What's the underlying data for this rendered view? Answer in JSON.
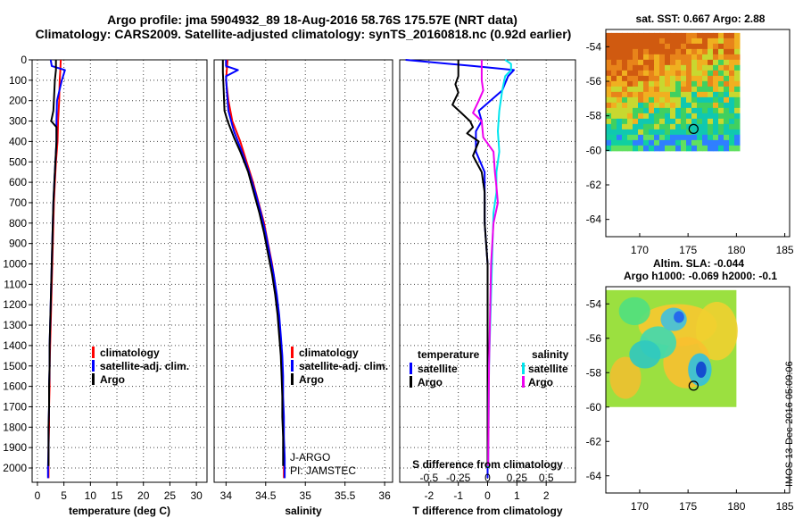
{
  "title": {
    "line1": "Argo profile: jma 5904932_89 18-Aug-2016 58.76S 175.57E (NRT data)",
    "line2": "Climatology: CARS2009. Satellite-adjusted climatology: synTS_20160818.nc (0.92d earlier)"
  },
  "watermark": "IMOS 13-Dec-2016 05:09:06",
  "colors": {
    "climatology": "#ff0000",
    "satellite": "#0000ff",
    "argo": "#000000",
    "sal_satellite": "#00e5ee",
    "sal_argo": "#ee00ee"
  },
  "chart_data": [
    {
      "type": "line",
      "id": "temperature",
      "xlabel": "temperature (deg C)",
      "xlim": [
        -1,
        32
      ],
      "xticks": [
        0,
        5,
        10,
        15,
        20,
        25,
        30
      ],
      "ylim": [
        2070,
        0
      ],
      "yticks": [
        0,
        100,
        200,
        300,
        400,
        500,
        600,
        700,
        800,
        900,
        1000,
        1100,
        1200,
        1300,
        1400,
        1500,
        1600,
        1700,
        1800,
        1900,
        2000
      ],
      "legend": [
        "climatology",
        "satellite-adj. clim.",
        "Argo"
      ],
      "series": [
        {
          "name": "climatology",
          "color": "#ff0000",
          "points": [
            [
              4.4,
              0
            ],
            [
              4.3,
              60
            ],
            [
              4.2,
              100
            ],
            [
              4.1,
              200
            ],
            [
              3.9,
              300
            ],
            [
              3.8,
              400
            ],
            [
              3.5,
              500
            ],
            [
              3.3,
              600
            ],
            [
              3.1,
              700
            ],
            [
              3.0,
              800
            ],
            [
              2.9,
              900
            ],
            [
              2.8,
              1000
            ],
            [
              2.7,
              1100
            ],
            [
              2.6,
              1200
            ],
            [
              2.5,
              1300
            ],
            [
              2.4,
              1400
            ],
            [
              2.3,
              1500
            ],
            [
              2.3,
              1600
            ],
            [
              2.2,
              1700
            ],
            [
              2.2,
              1800
            ],
            [
              2.1,
              1900
            ],
            [
              2.1,
              2000
            ],
            [
              2.1,
              2050
            ]
          ]
        },
        {
          "name": "satellite-adj. clim.",
          "color": "#0000ff",
          "points": [
            [
              2.5,
              0
            ],
            [
              2.7,
              30
            ],
            [
              5.2,
              50
            ],
            [
              4.6,
              100
            ],
            [
              3.7,
              200
            ],
            [
              3.6,
              300
            ],
            [
              3.6,
              400
            ],
            [
              3.4,
              500
            ],
            [
              3.2,
              600
            ],
            [
              3.0,
              700
            ],
            [
              2.9,
              800
            ],
            [
              2.8,
              900
            ],
            [
              2.7,
              1000
            ],
            [
              2.6,
              1100
            ],
            [
              2.5,
              1200
            ],
            [
              2.4,
              1300
            ],
            [
              2.3,
              1400
            ],
            [
              2.3,
              1500
            ],
            [
              2.2,
              1600
            ],
            [
              2.2,
              1700
            ],
            [
              2.1,
              1800
            ],
            [
              2.1,
              1900
            ],
            [
              2.0,
              2000
            ],
            [
              2.0,
              2050
            ]
          ]
        },
        {
          "name": "Argo",
          "color": "#000000",
          "points": [
            [
              3.5,
              0
            ],
            [
              3.5,
              50
            ],
            [
              3.3,
              100
            ],
            [
              3.1,
              200
            ],
            [
              3.0,
              250
            ],
            [
              2.6,
              300
            ],
            [
              3.6,
              330
            ],
            [
              3.6,
              400
            ],
            [
              3.4,
              500
            ],
            [
              3.2,
              600
            ],
            [
              3.0,
              700
            ],
            [
              2.9,
              800
            ],
            [
              2.8,
              900
            ],
            [
              2.7,
              1000
            ],
            [
              2.6,
              1100
            ],
            [
              2.5,
              1200
            ],
            [
              2.4,
              1300
            ],
            [
              2.3,
              1400
            ],
            [
              2.3,
              1500
            ],
            [
              2.2,
              1600
            ],
            [
              2.2,
              1700
            ],
            [
              2.1,
              1800
            ],
            [
              2.1,
              1900
            ],
            [
              2.1,
              1990
            ]
          ]
        }
      ]
    },
    {
      "type": "line",
      "id": "salinity",
      "xlabel": "salinity",
      "xlim": [
        33.85,
        36.1
      ],
      "xticks": [
        34,
        34.5,
        35,
        35.5,
        36
      ],
      "ylim": [
        2070,
        0
      ],
      "legend": [
        "climatology",
        "satellite-adj. clim.",
        "Argo"
      ],
      "float_info": [
        "J-ARGO",
        "PI: JAMSTEC"
      ],
      "series": [
        {
          "name": "climatology",
          "color": "#ff0000",
          "points": [
            [
              34.02,
              0
            ],
            [
              34.0,
              100
            ],
            [
              34.03,
              200
            ],
            [
              34.08,
              300
            ],
            [
              34.18,
              400
            ],
            [
              34.26,
              500
            ],
            [
              34.34,
              600
            ],
            [
              34.41,
              700
            ],
            [
              34.48,
              800
            ],
            [
              34.53,
              900
            ],
            [
              34.58,
              1000
            ],
            [
              34.62,
              1100
            ],
            [
              34.65,
              1200
            ],
            [
              34.67,
              1300
            ],
            [
              34.69,
              1400
            ],
            [
              34.7,
              1500
            ],
            [
              34.71,
              1600
            ],
            [
              34.72,
              1700
            ],
            [
              34.72,
              1800
            ],
            [
              34.73,
              1900
            ],
            [
              34.73,
              2000
            ],
            [
              34.73,
              2050
            ]
          ]
        },
        {
          "name": "satellite-adj. clim.",
          "color": "#0000ff",
          "points": [
            [
              34.0,
              0
            ],
            [
              34.0,
              30
            ],
            [
              34.15,
              50
            ],
            [
              34.0,
              80
            ],
            [
              34.01,
              150
            ],
            [
              34.03,
              250
            ],
            [
              34.1,
              350
            ],
            [
              34.2,
              450
            ],
            [
              34.29,
              550
            ],
            [
              34.37,
              650
            ],
            [
              34.44,
              750
            ],
            [
              34.5,
              850
            ],
            [
              34.55,
              950
            ],
            [
              34.6,
              1050
            ],
            [
              34.64,
              1150
            ],
            [
              34.67,
              1250
            ],
            [
              34.69,
              1350
            ],
            [
              34.71,
              1450
            ],
            [
              34.72,
              1550
            ],
            [
              34.72,
              1650
            ],
            [
              34.73,
              1750
            ],
            [
              34.73,
              1850
            ],
            [
              34.74,
              1950
            ],
            [
              34.74,
              2050
            ]
          ]
        },
        {
          "name": "Argo",
          "color": "#000000",
          "points": [
            [
              33.96,
              0
            ],
            [
              33.96,
              60
            ],
            [
              33.97,
              150
            ],
            [
              33.98,
              250
            ],
            [
              34.02,
              300
            ],
            [
              34.1,
              380
            ],
            [
              34.18,
              450
            ],
            [
              34.28,
              550
            ],
            [
              34.35,
              650
            ],
            [
              34.42,
              750
            ],
            [
              34.48,
              850
            ],
            [
              34.53,
              950
            ],
            [
              34.58,
              1050
            ],
            [
              34.62,
              1150
            ],
            [
              34.65,
              1250
            ],
            [
              34.67,
              1350
            ],
            [
              34.69,
              1450
            ],
            [
              34.7,
              1550
            ],
            [
              34.71,
              1650
            ],
            [
              34.71,
              1750
            ],
            [
              34.72,
              1850
            ],
            [
              34.72,
              1990
            ]
          ]
        }
      ]
    },
    {
      "type": "line",
      "id": "difference",
      "xlabel": "T difference from climatology",
      "xlabel2": "S difference from climatology",
      "xlim": [
        -3,
        3
      ],
      "xticks": [
        -2,
        -1,
        0,
        1,
        2
      ],
      "xticks2": [
        -0.5,
        -0.25,
        0,
        0.25,
        0.5
      ],
      "xticks2_labels": [
        "-0.5",
        "-0.25",
        "0",
        "0.25",
        "0.5"
      ],
      "ylim": [
        2070,
        0
      ],
      "legend_left_title": "temperature",
      "legend_right_title": "salinity",
      "legend_left": [
        "satellite",
        "Argo"
      ],
      "legend_right": [
        "satellite",
        "Argo"
      ],
      "series": [
        {
          "name": "temperature satellite",
          "color": "#0000ff",
          "points": [
            [
              -2.8,
              0
            ],
            [
              -0.5,
              30
            ],
            [
              0.9,
              50
            ],
            [
              0.7,
              80
            ],
            [
              0.5,
              150
            ],
            [
              -0.3,
              250
            ],
            [
              -0.2,
              300
            ],
            [
              -0.4,
              350
            ],
            [
              -0.4,
              450
            ],
            [
              -0.1,
              550
            ],
            [
              -0.1,
              650
            ],
            [
              -0.1,
              800
            ],
            [
              0,
              1000
            ],
            [
              0,
              1500
            ],
            [
              0,
              2050
            ]
          ]
        },
        {
          "name": "temperature Argo",
          "color": "#000000",
          "points": [
            [
              -1.0,
              0
            ],
            [
              -1.0,
              80
            ],
            [
              -1.1,
              120
            ],
            [
              -1.0,
              160
            ],
            [
              -1.2,
              220
            ],
            [
              -0.9,
              260
            ],
            [
              -0.6,
              300
            ],
            [
              -0.5,
              330
            ],
            [
              -0.7,
              360
            ],
            [
              -0.3,
              400
            ],
            [
              -0.5,
              470
            ],
            [
              -0.2,
              550
            ],
            [
              -0.1,
              650
            ],
            [
              -0.1,
              800
            ],
            [
              0,
              1000
            ],
            [
              0,
              1500
            ],
            [
              0,
              1990
            ]
          ]
        },
        {
          "name": "salinity satellite",
          "color": "#00e5ee",
          "points": [
            [
              0.6,
              0
            ],
            [
              0.8,
              20
            ],
            [
              0.8,
              50
            ],
            [
              0.6,
              80
            ],
            [
              0.5,
              150
            ],
            [
              0.4,
              250
            ],
            [
              0.35,
              350
            ],
            [
              0.4,
              450
            ],
            [
              0.3,
              550
            ],
            [
              0.3,
              650
            ],
            [
              0.2,
              750
            ],
            [
              0.15,
              1000
            ],
            [
              0.05,
              1500
            ],
            [
              0.02,
              2000
            ]
          ]
        },
        {
          "name": "salinity Argo",
          "color": "#ee00ee",
          "points": [
            [
              -0.2,
              0
            ],
            [
              -0.2,
              100
            ],
            [
              -0.15,
              150
            ],
            [
              -0.3,
              200
            ],
            [
              -0.5,
              260
            ],
            [
              -0.2,
              300
            ],
            [
              -0.15,
              380
            ],
            [
              0.2,
              450
            ],
            [
              0.25,
              550
            ],
            [
              0.3,
              620
            ],
            [
              0.35,
              700
            ],
            [
              0.2,
              800
            ],
            [
              0.12,
              1000
            ],
            [
              0.05,
              1500
            ],
            [
              0.02,
              1990
            ]
          ]
        }
      ]
    },
    {
      "type": "heatmap",
      "id": "sst-map",
      "title": "sat. SST: 0.667 Argo: 2.88",
      "xlim": [
        166.5,
        185.5
      ],
      "ylim": [
        -65,
        -53
      ],
      "xticks": [
        170,
        175,
        180,
        185
      ],
      "yticks": [
        -54,
        -56,
        -58,
        -60,
        -62,
        -64
      ],
      "data_extent": {
        "lon": [
          166.5,
          180
        ],
        "lat": [
          -60,
          -53.2
        ]
      },
      "marker": {
        "lon": 175.57,
        "lat": -58.76
      }
    },
    {
      "type": "heatmap",
      "id": "sla-map",
      "title": "Altim. SLA: -0.044",
      "subtitle": "Argo h1000: -0.069 h2000: -0.1",
      "xlim": [
        166.5,
        185.5
      ],
      "ylim": [
        -65,
        -53
      ],
      "xticks": [
        170,
        175,
        180,
        185
      ],
      "yticks": [
        -54,
        -56,
        -58,
        -60,
        -62,
        -64
      ],
      "data_extent": {
        "lon": [
          166.5,
          180
        ],
        "lat": [
          -60,
          -53.2
        ]
      },
      "marker": {
        "lon": 175.57,
        "lat": -58.76
      }
    }
  ]
}
